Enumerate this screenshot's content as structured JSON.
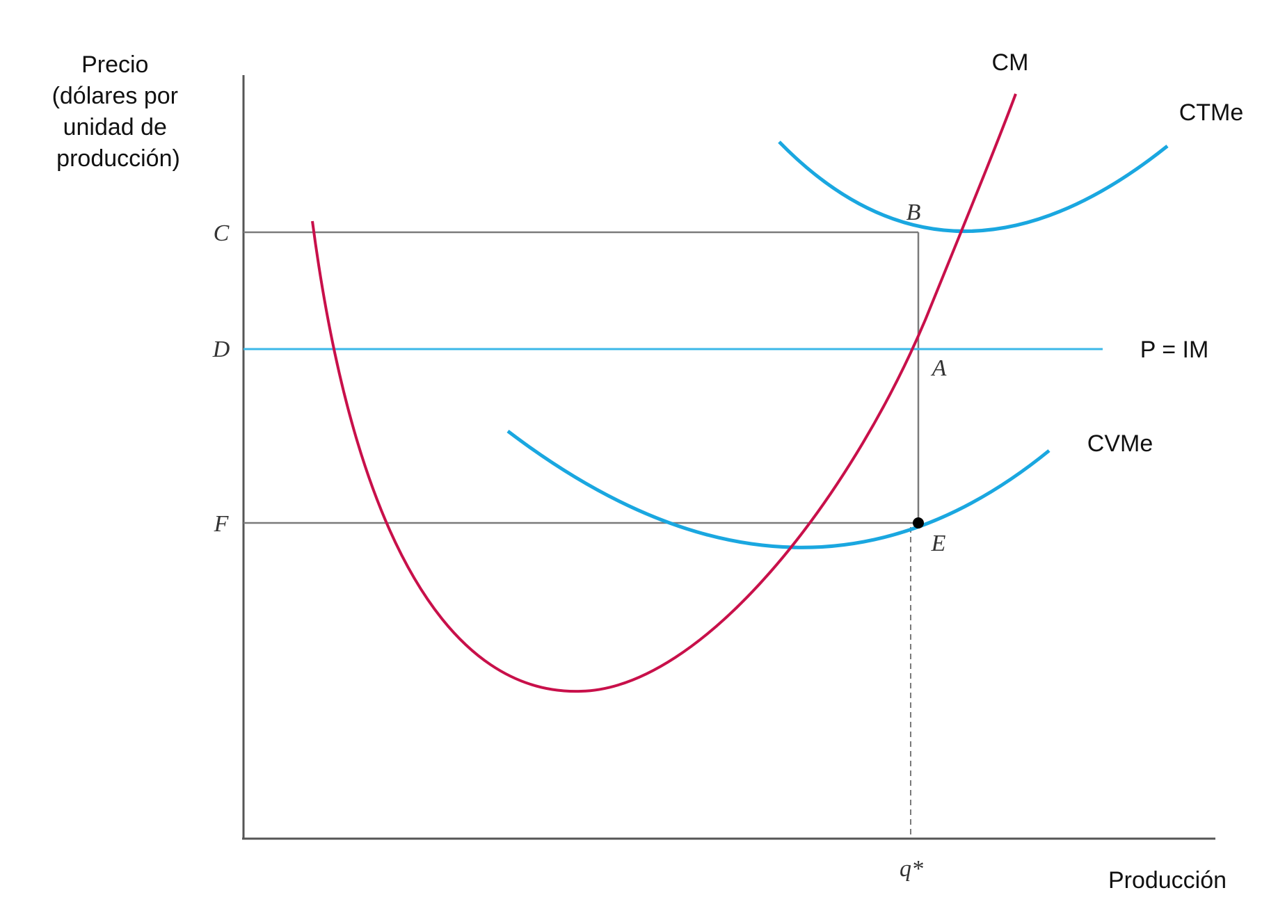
{
  "colors": {
    "mc_curve": "#c8104a",
    "cost_curve": "#1aa7e0",
    "price_line": "#3bb8e8",
    "axis": "#555555",
    "guide": "#7a7a7a",
    "point": "#000000"
  },
  "y_axis_label": [
    "Precio",
    "(dólares por",
    "unidad de",
    "producción)"
  ],
  "x_axis_label": "Producción",
  "y_ticks": {
    "c": "C",
    "d": "D",
    "f": "F"
  },
  "x_ticks": {
    "q": "q*"
  },
  "curves": {
    "cm": "CM",
    "ctme": "CTMe",
    "cvme": "CVMe",
    "p_im": "P = IM"
  },
  "points": {
    "a": "A",
    "b": "B",
    "e": "E"
  }
}
